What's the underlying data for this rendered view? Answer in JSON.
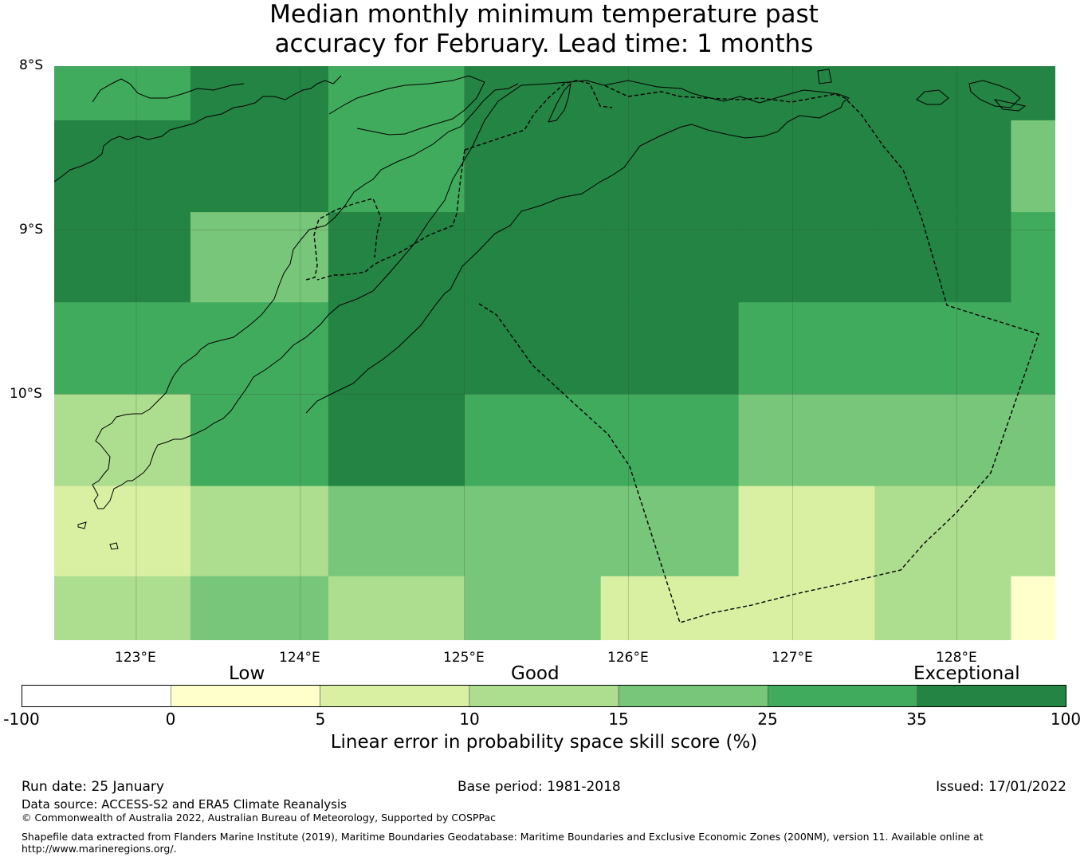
{
  "title": {
    "line1": "Median monthly minimum temperature past",
    "line2": "accuracy for February. Lead time: 1 months"
  },
  "map": {
    "lat_labels": [
      "8°S",
      "9°S",
      "10°S"
    ],
    "lon_labels": [
      "123°E",
      "124°E",
      "125°E",
      "126°E",
      "127°E",
      "128°E"
    ],
    "extent": {
      "lon": [
        122.5,
        128.6
      ],
      "lat": [
        -11.5,
        -8.0
      ]
    },
    "grid": {
      "lon_edges": [
        122.5,
        123.33,
        124.17,
        125.0,
        125.83,
        126.67,
        127.5,
        128.33,
        128.6
      ],
      "lat_edges": [
        -8.0,
        -8.33,
        -8.89,
        -9.44,
        -10.0,
        -10.56,
        -11.11,
        -11.5
      ],
      "values": [
        [
          30,
          40,
          30,
          40,
          40,
          40,
          40,
          40
        ],
        [
          40,
          40,
          30,
          40,
          40,
          40,
          40,
          20
        ],
        [
          40,
          20,
          40,
          40,
          40,
          40,
          40,
          30
        ],
        [
          30,
          30,
          40,
          40,
          40,
          30,
          30,
          30
        ],
        [
          12,
          30,
          40,
          30,
          30,
          20,
          20,
          20
        ],
        [
          7,
          12,
          20,
          20,
          20,
          7,
          12,
          12
        ],
        [
          12,
          20,
          12,
          20,
          7,
          7,
          12,
          2
        ]
      ]
    },
    "colors": {
      "land_line": "#000000",
      "boundary_line": "#000000",
      "gridline": "#404040"
    }
  },
  "colorbar": {
    "categories": [
      "Low",
      "Good",
      "Exceptional"
    ],
    "ticks": [
      "-100",
      "0",
      "5",
      "10",
      "15",
      "25",
      "35",
      "100"
    ],
    "bins": [
      {
        "from": -100,
        "to": 0,
        "color": "#ffffff"
      },
      {
        "from": 0,
        "to": 5,
        "color": "#ffffcc"
      },
      {
        "from": 5,
        "to": 10,
        "color": "#d9f0a3"
      },
      {
        "from": 10,
        "to": 15,
        "color": "#addd8e"
      },
      {
        "from": 15,
        "to": 25,
        "color": "#78c679"
      },
      {
        "from": 25,
        "to": 35,
        "color": "#41ab5d"
      },
      {
        "from": 35,
        "to": 100,
        "color": "#238443"
      }
    ],
    "label": "Linear error in probability space skill score (%)"
  },
  "footer": {
    "run_date": "Run date: 25 January",
    "base_period": "Base period: 1981-2018",
    "issued": "Issued: 17/01/2022",
    "data_source": "Data source: ACCESS-S2 and ERA5 Climate Reanalysis",
    "copyright": "© Commonwealth of Australia 2022, Australian Bureau of Meteorology, Supported by COSPPac",
    "shapefile_line1": "Shapefile data extracted from Flanders Marine Institute (2019), Maritime Boundaries Geodatabase: Maritime Boundaries and Exclusive Economic Zones (200NM), version 11. Available online at",
    "shapefile_line2": "http://www.marineregions.org/."
  }
}
